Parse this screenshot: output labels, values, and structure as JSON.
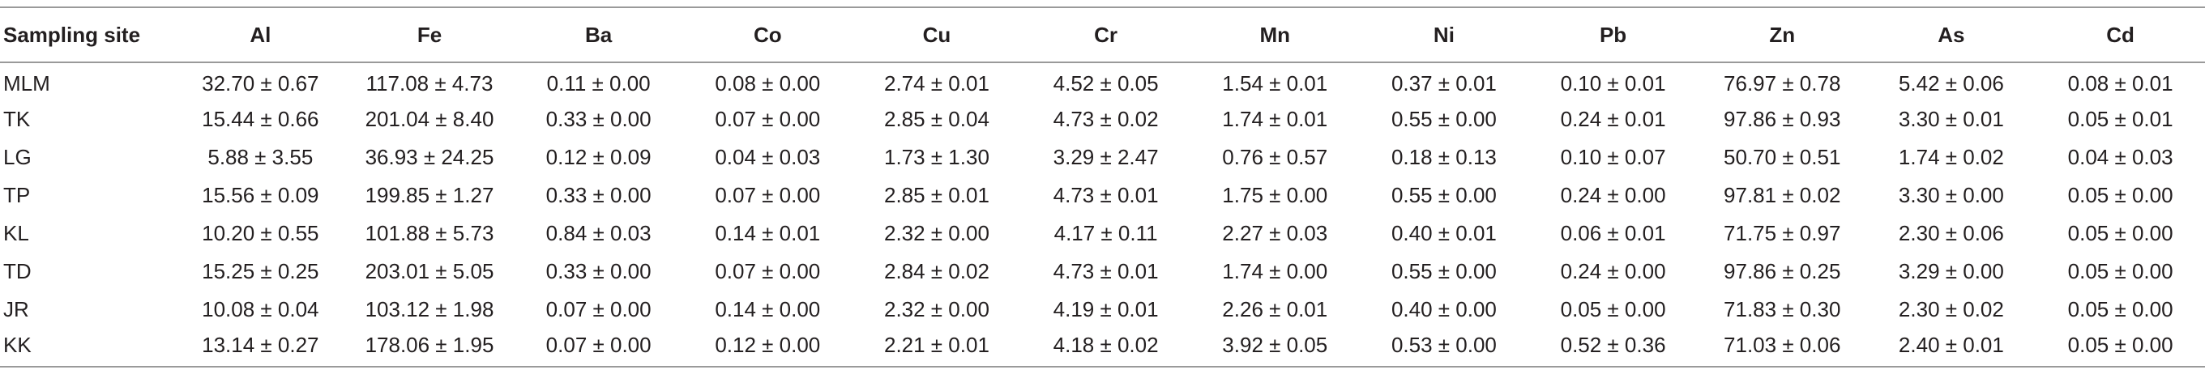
{
  "table": {
    "headers": [
      "Sampling site",
      "Al",
      "Fe",
      "Ba",
      "Co",
      "Cu",
      "Cr",
      "Mn",
      "Ni",
      "Pb",
      "Zn",
      "As",
      "Cd"
    ],
    "rows": [
      [
        "MLM",
        "32.70 ± 0.67",
        "117.08 ± 4.73",
        "0.11 ± 0.00",
        "0.08 ± 0.00",
        "2.74 ± 0.01",
        "4.52 ± 0.05",
        "1.54 ± 0.01",
        "0.37 ± 0.01",
        "0.10 ± 0.01",
        "76.97 ± 0.78",
        "5.42 ± 0.06",
        "0.08 ± 0.01"
      ],
      [
        "TK",
        "15.44 ± 0.66",
        "201.04 ± 8.40",
        "0.33 ± 0.00",
        "0.07 ± 0.00",
        "2.85 ± 0.04",
        "4.73 ± 0.02",
        "1.74 ± 0.01",
        "0.55 ± 0.00",
        "0.24 ± 0.01",
        "97.86 ± 0.93",
        "3.30 ± 0.01",
        "0.05 ± 0.01"
      ],
      [
        "LG",
        "5.88 ± 3.55",
        "36.93 ± 24.25",
        "0.12 ± 0.09",
        "0.04 ± 0.03",
        "1.73 ± 1.30",
        "3.29 ± 2.47",
        "0.76 ± 0.57",
        "0.18 ± 0.13",
        "0.10 ± 0.07",
        "50.70 ± 0.51",
        "1.74 ± 0.02",
        "0.04 ± 0.03"
      ],
      [
        "TP",
        "15.56 ± 0.09",
        "199.85 ± 1.27",
        "0.33 ± 0.00",
        "0.07 ± 0.00",
        "2.85 ± 0.01",
        "4.73 ± 0.01",
        "1.75 ± 0.00",
        "0.55 ± 0.00",
        "0.24 ± 0.00",
        "97.81 ± 0.02",
        "3.30 ± 0.00",
        "0.05 ± 0.00"
      ],
      [
        "KL",
        "10.20 ± 0.55",
        "101.88 ± 5.73",
        "0.84 ± 0.03",
        "0.14 ± 0.01",
        "2.32 ± 0.00",
        "4.17 ± 0.11",
        "2.27 ± 0.03",
        "0.40 ± 0.01",
        "0.06 ± 0.01",
        "71.75 ± 0.97",
        "2.30 ± 0.06",
        "0.05 ± 0.00"
      ],
      [
        "TD",
        "15.25 ± 0.25",
        "203.01 ± 5.05",
        "0.33 ± 0.00",
        "0.07 ± 0.00",
        "2.84 ± 0.02",
        "4.73 ± 0.01",
        "1.74 ± 0.00",
        "0.55 ± 0.00",
        "0.24 ± 0.00",
        "97.86 ± 0.25",
        "3.29 ± 0.00",
        "0.05 ± 0.00"
      ],
      [
        "JR",
        "10.08 ± 0.04",
        "103.12 ± 1.98",
        "0.07 ± 0.00",
        "0.14 ± 0.00",
        "2.32 ± 0.00",
        "4.19 ± 0.01",
        "2.26 ± 0.01",
        "0.40 ± 0.00",
        "0.05 ± 0.00",
        "71.83 ± 0.30",
        "2.30 ± 0.02",
        "0.05 ± 0.00"
      ],
      [
        "KK",
        "13.14 ± 0.27",
        "178.06 ± 1.95",
        "0.07 ± 0.00",
        "0.12 ± 0.00",
        "2.21 ± 0.01",
        "4.18 ± 0.02",
        "3.92 ± 0.05",
        "0.53 ± 0.00",
        "0.52 ± 0.36",
        "71.03 ± 0.06",
        "2.40 ± 0.01",
        "0.05 ± 0.00"
      ]
    ]
  }
}
